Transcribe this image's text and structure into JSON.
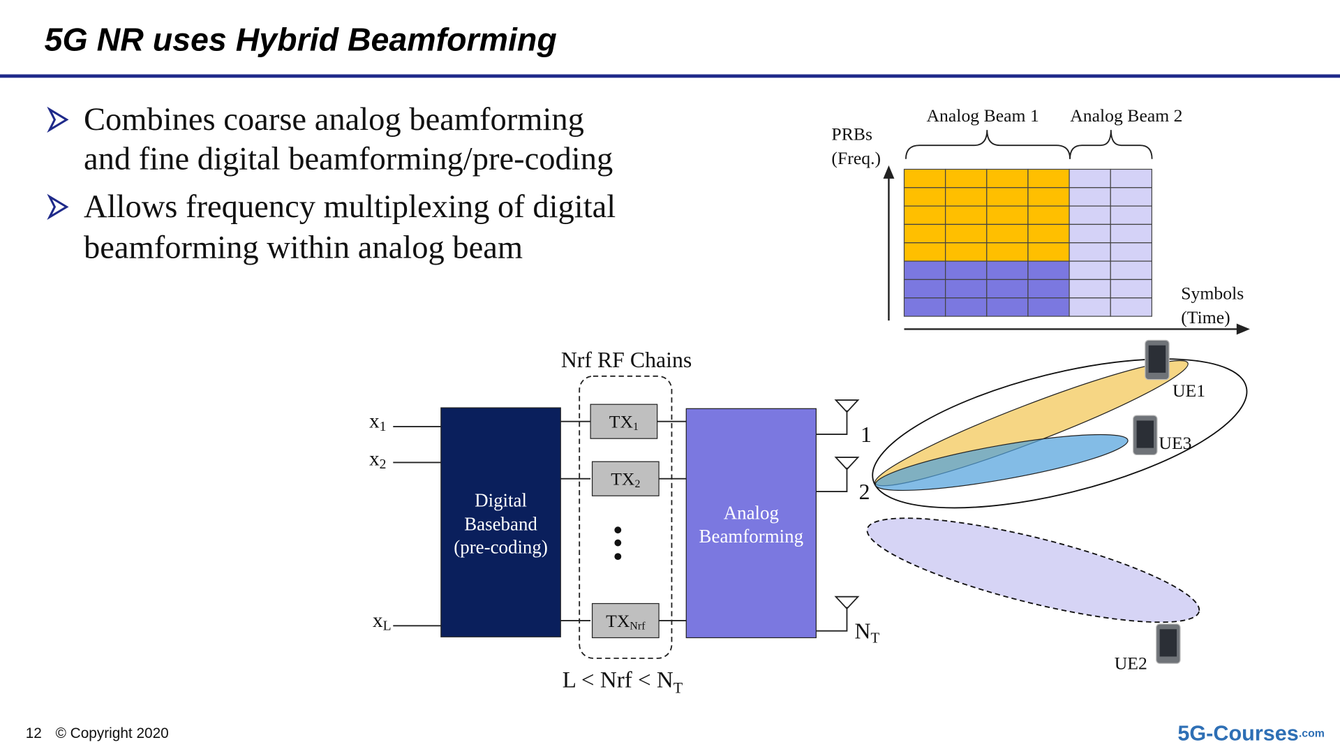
{
  "header": {
    "title": "5G NR uses Hybrid Beamforming"
  },
  "bullets": [
    [
      "Combines coarse analog beamforming",
      "and fine digital beamforming/pre-coding"
    ],
    [
      "Allows frequency multiplexing of digital",
      "beamforming within analog beam"
    ]
  ],
  "grid_chart": {
    "y_label": [
      "PRBs",
      "(Freq.)"
    ],
    "x_label": [
      "Symbols",
      "(Time)"
    ],
    "beams": [
      "Analog Beam 1",
      "Analog Beam 2"
    ]
  },
  "diagram": {
    "rf_title": "Nrf  RF Chains",
    "inputs": [
      {
        "base": "x",
        "sub": "1"
      },
      {
        "base": "x",
        "sub": "2"
      },
      {
        "base": "x",
        "sub": "L"
      }
    ],
    "baseband": [
      "Digital",
      "Baseband",
      "(pre-coding)"
    ],
    "tx": [
      {
        "base": "TX",
        "sub": "1"
      },
      {
        "base": "TX",
        "sub": "2"
      },
      {
        "base": "TX",
        "sub": "Nrf"
      }
    ],
    "analog": [
      "Analog",
      "Beamforming"
    ],
    "antennas": [
      {
        "base": "1"
      },
      {
        "base": "2"
      },
      {
        "base": "N",
        "sub": "T"
      }
    ],
    "constraint": {
      "base": "L < Nrf < N",
      "sub": "T"
    },
    "ues": [
      "UE1",
      "UE3",
      "UE2"
    ]
  },
  "footer": {
    "page": "12",
    "copyright": "© Copyright 2020",
    "logo_main": "5G-Courses",
    "logo_suffix": ".com"
  }
}
